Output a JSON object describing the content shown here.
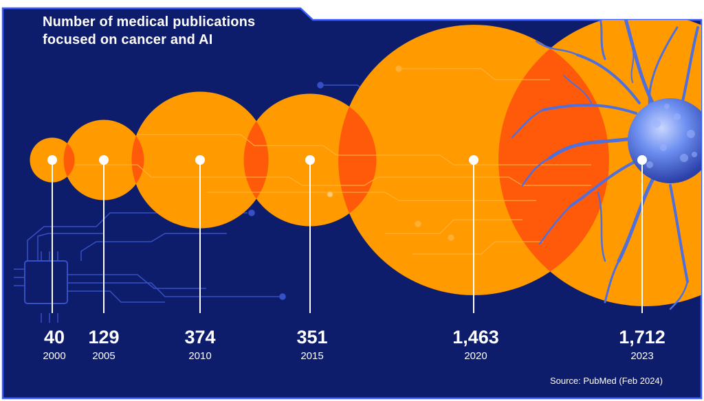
{
  "title_lines": [
    "Number of medical publications",
    "focused on cancer and AI"
  ],
  "source": "Source: PubMed (Feb 2024)",
  "colors": {
    "background": "#0e1d6b",
    "frame": "#3a5cff",
    "bubble": "#ff9a00",
    "overlap": "#ff5a0a",
    "marker": "#ffffff",
    "circuit": "#3d5ad6",
    "cell": "#5a7de8"
  },
  "decoration": {
    "cancer_cell_illustration": "cancer-cell",
    "chip_icon": "microchip-icon"
  },
  "chart_data": {
    "type": "bubble",
    "title": "Number of medical publications focused on cancer and AI",
    "x": [
      "2000",
      "2005",
      "2010",
      "2015",
      "2020",
      "2023"
    ],
    "values": [
      40,
      129,
      374,
      351,
      1463,
      1712
    ],
    "value_labels": [
      "40",
      "129",
      "374",
      "351",
      "1,463",
      "1,712"
    ],
    "encoding": "bubble area proportional to value",
    "source": "Source: PubMed (Feb 2024)"
  }
}
